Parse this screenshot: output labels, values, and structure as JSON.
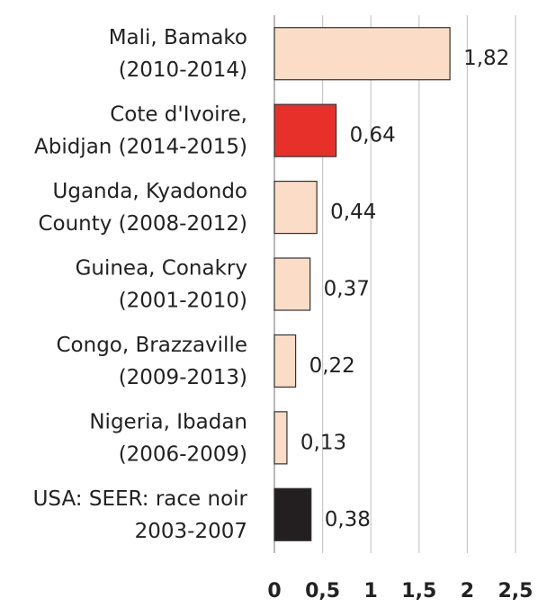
{
  "chart_data": {
    "type": "hbar",
    "categories": [
      [
        "Mali, Bamako",
        "(2010-2014)"
      ],
      [
        "Cote d'Ivoire,",
        "Abidjan (2014-2015)"
      ],
      [
        "Uganda, Kyadondo",
        "County (2008-2012)"
      ],
      [
        "Guinea, Conakry",
        "(2001-2010)"
      ],
      [
        "Congo, Brazzaville",
        "(2009-2013)"
      ],
      [
        "Nigeria, Ibadan",
        "(2006-2009)"
      ],
      [
        "USA: SEER: race noir",
        "2003-2007"
      ]
    ],
    "values": [
      1.82,
      0.64,
      0.44,
      0.37,
      0.22,
      0.13,
      0.38
    ],
    "value_labels": [
      "1,82",
      "0,64",
      "0,44",
      "0,37",
      "0,22",
      "0,13",
      "0,38"
    ],
    "colors": [
      "#fbdcc6",
      "#e8302a",
      "#fbdcc6",
      "#fbdcc6",
      "#fbdcc6",
      "#fbdcc6",
      "#231f20"
    ],
    "xlim": [
      0,
      2.5
    ],
    "xticks": [
      0,
      {
        "value": 0.5,
        "label": "0,5"
      },
      1,
      {
        "value": 1.5,
        "label": "1,5"
      },
      2,
      {
        "value": 2.5,
        "label": "2,5"
      }
    ],
    "grid": true
  }
}
